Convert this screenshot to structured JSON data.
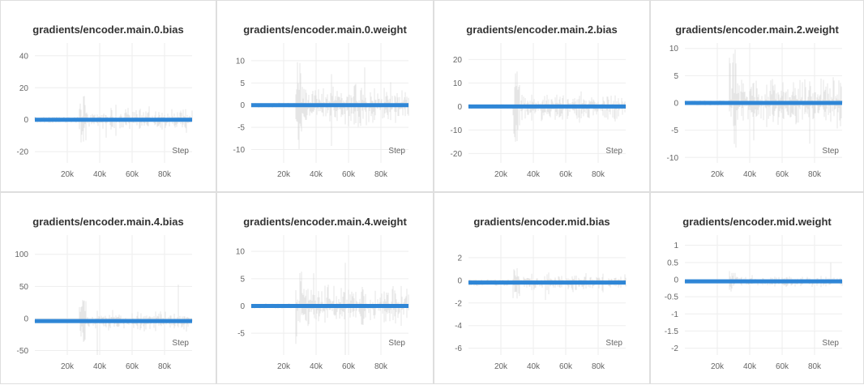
{
  "colors": {
    "line": "#2f86d6",
    "noise": "#cfcfcf",
    "grid": "#eeeeee",
    "tick": "#666666"
  },
  "chart_data": [
    {
      "type": "line",
      "title": "gradients/encoder.main.0.bias",
      "xlabel": "Step",
      "ylabel": "",
      "xlim": [
        0,
        97000
      ],
      "ylim": [
        -27,
        48
      ],
      "xticks": [
        20000,
        40000,
        60000,
        80000
      ],
      "xtick_labels": [
        "20k",
        "40k",
        "60k",
        "80k"
      ],
      "yticks": [
        40,
        20,
        0,
        -20
      ],
      "ytick_labels": [
        "40",
        "20",
        "0",
        "-20"
      ],
      "grid": true,
      "series": [
        {
          "x": [
            0,
            25000,
            50000,
            75000,
            97000
          ],
          "y": [
            0,
            0,
            0,
            0,
            0
          ]
        }
      ],
      "noise": {
        "onset": 27000,
        "base": 2,
        "burst": 15,
        "late": 12,
        "spike": 40
      }
    },
    {
      "type": "line",
      "title": "gradients/encoder.main.0.weight",
      "xlabel": "Step",
      "ylabel": "",
      "xlim": [
        0,
        97000
      ],
      "ylim": [
        -13,
        14
      ],
      "xticks": [
        20000,
        40000,
        60000,
        80000
      ],
      "xtick_labels": [
        "20k",
        "40k",
        "60k",
        "80k"
      ],
      "yticks": [
        10,
        5,
        0,
        -5,
        -10
      ],
      "ytick_labels": [
        "10",
        "5",
        "0",
        "-5",
        "-10"
      ],
      "grid": true,
      "series": [
        {
          "x": [
            0,
            25000,
            50000,
            75000,
            97000
          ],
          "y": [
            0,
            0,
            0,
            0,
            0
          ]
        }
      ],
      "noise": {
        "onset": 27000,
        "base": 0.6,
        "burst": 10,
        "late": 7,
        "spike": 12
      }
    },
    {
      "type": "line",
      "title": "gradients/encoder.main.2.bias",
      "xlabel": "Step",
      "ylabel": "",
      "xlim": [
        0,
        97000
      ],
      "ylim": [
        -24,
        27
      ],
      "xticks": [
        20000,
        40000,
        60000,
        80000
      ],
      "xtick_labels": [
        "20k",
        "40k",
        "60k",
        "80k"
      ],
      "yticks": [
        20,
        10,
        0,
        -10,
        -20
      ],
      "ytick_labels": [
        "20",
        "10",
        "0",
        "-10",
        "-20"
      ],
      "grid": true,
      "series": [
        {
          "x": [
            0,
            25000,
            50000,
            75000,
            97000
          ],
          "y": [
            0,
            0,
            0,
            0,
            0
          ]
        }
      ],
      "noise": {
        "onset": 27000,
        "base": 1,
        "burst": 16,
        "late": 10,
        "spike": 22
      }
    },
    {
      "type": "line",
      "title": "gradients/encoder.main.2.weight",
      "xlabel": "Step",
      "ylabel": "",
      "xlim": [
        0,
        97000
      ],
      "ylim": [
        -11,
        11
      ],
      "xticks": [
        20000,
        40000,
        60000,
        80000
      ],
      "xtick_labels": [
        "20k",
        "40k",
        "60k",
        "80k"
      ],
      "yticks": [
        10,
        5,
        0,
        -5,
        -10
      ],
      "ytick_labels": [
        "10",
        "5",
        "0",
        "-5",
        "-10"
      ],
      "grid": true,
      "series": [
        {
          "x": [
            0,
            25000,
            50000,
            75000,
            97000
          ],
          "y": [
            0,
            0,
            0,
            0,
            0
          ]
        }
      ],
      "noise": {
        "onset": 27000,
        "base": 0.5,
        "burst": 10,
        "late": 7,
        "spike": 10
      }
    },
    {
      "type": "line",
      "title": "gradients/encoder.main.4.bias",
      "xlabel": "Step",
      "ylabel": "",
      "xlim": [
        0,
        97000
      ],
      "ylim": [
        -57,
        130
      ],
      "xticks": [
        20000,
        40000,
        60000,
        80000
      ],
      "xtick_labels": [
        "20k",
        "40k",
        "60k",
        "80k"
      ],
      "yticks": [
        100,
        50,
        0,
        -50
      ],
      "ytick_labels": [
        "100",
        "50",
        "0",
        "-50"
      ],
      "grid": true,
      "series": [
        {
          "x": [
            0,
            25000,
            50000,
            75000,
            97000
          ],
          "y": [
            -4,
            -4,
            -4,
            -4,
            -4
          ]
        }
      ],
      "noise": {
        "onset": 27000,
        "base": 3,
        "burst": 35,
        "late": 25,
        "spike": 120
      }
    },
    {
      "type": "line",
      "title": "gradients/encoder.main.4.weight",
      "xlabel": "Step",
      "ylabel": "",
      "xlim": [
        0,
        97000
      ],
      "ylim": [
        -9,
        13
      ],
      "xticks": [
        20000,
        40000,
        60000,
        80000
      ],
      "xtick_labels": [
        "20k",
        "40k",
        "60k",
        "80k"
      ],
      "yticks": [
        10,
        5,
        0,
        -5
      ],
      "ytick_labels": [
        "10",
        "5",
        "0",
        "-5"
      ],
      "grid": true,
      "series": [
        {
          "x": [
            0,
            25000,
            50000,
            75000,
            97000
          ],
          "y": [
            0,
            0,
            0,
            0,
            0
          ]
        }
      ],
      "noise": {
        "onset": 27000,
        "base": 0.5,
        "burst": 7,
        "late": 6,
        "spike": 12
      }
    },
    {
      "type": "line",
      "title": "gradients/encoder.mid.bias",
      "xlabel": "Step",
      "ylabel": "",
      "xlim": [
        0,
        97000
      ],
      "ylim": [
        -6.6,
        4
      ],
      "xticks": [
        20000,
        40000,
        60000,
        80000
      ],
      "xtick_labels": [
        "20k",
        "40k",
        "60k",
        "80k"
      ],
      "yticks": [
        2,
        0,
        -2,
        -4,
        -6
      ],
      "ytick_labels": [
        "2",
        "0",
        "-2",
        "-4",
        "-6"
      ],
      "grid": true,
      "series": [
        {
          "x": [
            0,
            25000,
            50000,
            75000,
            97000
          ],
          "y": [
            -0.2,
            -0.2,
            -0.2,
            -0.2,
            -0.2
          ]
        }
      ],
      "noise": {
        "onset": 27000,
        "base": 0.3,
        "burst": 1.5,
        "late": 1.2,
        "spike": 4
      }
    },
    {
      "type": "line",
      "title": "gradients/encoder.mid.weight",
      "xlabel": "Step",
      "ylabel": "",
      "xlim": [
        0,
        97000
      ],
      "ylim": [
        -2.2,
        1.3
      ],
      "xticks": [
        20000,
        40000,
        60000,
        80000
      ],
      "xtick_labels": [
        "20k",
        "40k",
        "60k",
        "80k"
      ],
      "yticks": [
        1,
        0.5,
        0,
        -0.5,
        -1,
        -1.5,
        -2
      ],
      "ytick_labels": [
        "1",
        "0.5",
        "0",
        "-0.5",
        "-1",
        "-1.5",
        "-2"
      ],
      "grid": true,
      "series": [
        {
          "x": [
            0,
            25000,
            50000,
            75000,
            97000
          ],
          "y": [
            -0.05,
            -0.05,
            -0.05,
            -0.05,
            -0.05
          ]
        }
      ],
      "noise": {
        "onset": 27000,
        "base": 0.05,
        "burst": 0.3,
        "late": 0.25,
        "spike": 1.5
      }
    }
  ]
}
